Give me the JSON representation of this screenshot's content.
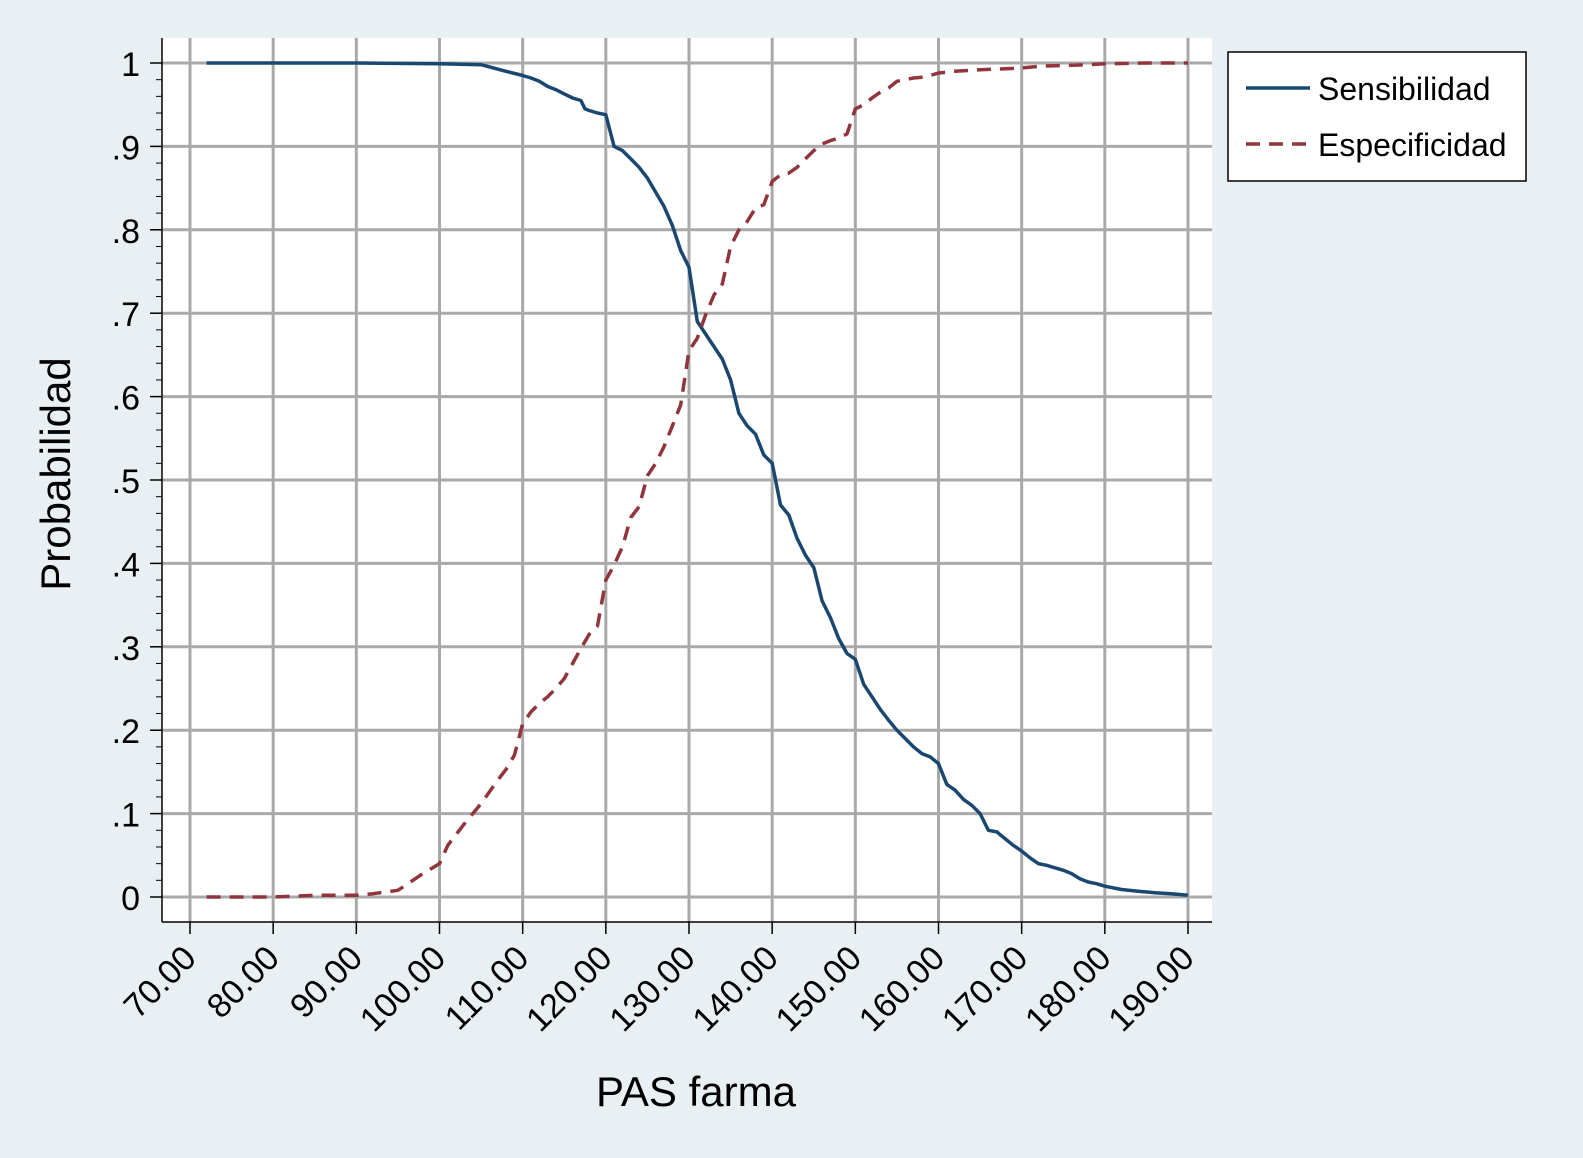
{
  "chart_data": {
    "type": "line",
    "title": "",
    "xlabel": "PAS farma",
    "ylabel": "Probabilidad",
    "xlim": [
      70,
      190
    ],
    "ylim": [
      0,
      1
    ],
    "x_ticks": [
      70,
      80,
      90,
      100,
      110,
      120,
      130,
      140,
      150,
      160,
      170,
      180,
      190
    ],
    "x_tick_labels": [
      "70.00",
      "80.00",
      "90.00",
      "100.00",
      "110.00",
      "120.00",
      "130.00",
      "140.00",
      "150.00",
      "160.00",
      "170.00",
      "180.00",
      "190.00"
    ],
    "y_ticks": [
      0,
      0.1,
      0.2,
      0.3,
      0.4,
      0.5,
      0.6,
      0.7,
      0.8,
      0.9,
      1
    ],
    "y_tick_labels": [
      "0",
      ".1",
      ".2",
      ".3",
      ".4",
      ".5",
      ".6",
      ".7",
      ".8",
      ".9",
      "1"
    ],
    "grid": true,
    "legend_position": "top-right, outside plot",
    "series": [
      {
        "name": "Sensibilidad",
        "color": "#1a476f",
        "style": "solid",
        "x": [
          72,
          80,
          90,
          100,
          105,
          108,
          110,
          111,
          112,
          113,
          114,
          115,
          116,
          117,
          117.5,
          118,
          119,
          120,
          121,
          122,
          123,
          124,
          125,
          126,
          127,
          128,
          129,
          130,
          131,
          132,
          133,
          134,
          135,
          136,
          137,
          138,
          139,
          140,
          141,
          142,
          143,
          144,
          145,
          146,
          147,
          148,
          149,
          150,
          151,
          152,
          153,
          154,
          155,
          156,
          157,
          158,
          159,
          160,
          161,
          162,
          163,
          164,
          165,
          166,
          167,
          168,
          169,
          170,
          171,
          172,
          173,
          174,
          175,
          176,
          177,
          178,
          179,
          180,
          182,
          184,
          186,
          188,
          190
        ],
        "values": [
          1,
          1,
          1,
          0.999,
          0.998,
          0.99,
          0.985,
          0.982,
          0.978,
          0.972,
          0.968,
          0.963,
          0.958,
          0.955,
          0.945,
          0.943,
          0.94,
          0.938,
          0.9,
          0.895,
          0.885,
          0.875,
          0.862,
          0.845,
          0.828,
          0.805,
          0.775,
          0.755,
          0.69,
          0.675,
          0.66,
          0.645,
          0.62,
          0.58,
          0.565,
          0.555,
          0.53,
          0.52,
          0.47,
          0.458,
          0.43,
          0.41,
          0.395,
          0.355,
          0.335,
          0.31,
          0.292,
          0.285,
          0.255,
          0.24,
          0.225,
          0.212,
          0.2,
          0.19,
          0.18,
          0.172,
          0.168,
          0.16,
          0.135,
          0.128,
          0.117,
          0.11,
          0.1,
          0.08,
          0.078,
          0.07,
          0.062,
          0.055,
          0.047,
          0.04,
          0.038,
          0.035,
          0.032,
          0.028,
          0.022,
          0.018,
          0.016,
          0.013,
          0.009,
          0.007,
          0.005,
          0.004,
          0.002
        ]
      },
      {
        "name": "Especificidad",
        "color": "#90353b",
        "style": "dashed",
        "x": [
          72,
          80,
          85,
          90,
          92,
          95,
          98,
          100,
          101,
          102,
          103,
          104,
          105,
          106,
          107,
          108,
          109,
          110,
          111,
          112,
          113,
          114,
          115,
          116,
          117,
          118,
          119,
          120,
          121,
          122,
          123,
          124,
          125,
          126,
          127,
          128,
          129,
          130,
          131,
          132,
          133,
          134,
          135,
          136,
          137,
          138,
          139,
          140,
          141,
          142,
          143,
          144,
          145,
          146,
          147,
          148,
          149,
          150,
          151,
          152,
          153,
          154,
          155,
          156,
          157,
          158,
          159,
          160,
          162,
          165,
          168,
          170,
          172,
          175,
          178,
          180,
          185,
          190
        ],
        "values": [
          0,
          0,
          0.002,
          0.002,
          0.004,
          0.008,
          0.028,
          0.04,
          0.062,
          0.075,
          0.088,
          0.1,
          0.112,
          0.126,
          0.14,
          0.153,
          0.17,
          0.208,
          0.222,
          0.232,
          0.24,
          0.25,
          0.262,
          0.28,
          0.298,
          0.315,
          0.325,
          0.38,
          0.398,
          0.42,
          0.455,
          0.468,
          0.505,
          0.52,
          0.54,
          0.565,
          0.59,
          0.655,
          0.67,
          0.698,
          0.722,
          0.735,
          0.78,
          0.8,
          0.81,
          0.826,
          0.83,
          0.858,
          0.866,
          0.868,
          0.875,
          0.885,
          0.895,
          0.903,
          0.907,
          0.91,
          0.915,
          0.945,
          0.95,
          0.958,
          0.965,
          0.97,
          0.978,
          0.98,
          0.982,
          0.983,
          0.985,
          0.988,
          0.99,
          0.992,
          0.993,
          0.994,
          0.996,
          0.997,
          0.998,
          0.999,
          1,
          1
        ]
      }
    ]
  }
}
